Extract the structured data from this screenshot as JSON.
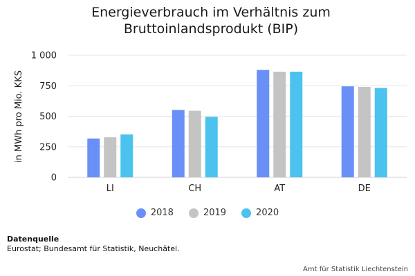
{
  "chart_data": {
    "type": "bar",
    "title_lines": [
      "Energieverbrauch im Verhältnis zum",
      "Bruttoinlandsprodukt (BIP)"
    ],
    "ylabel": "in MWh pro Mio. KKS",
    "xlabel": "",
    "categories": [
      "LI",
      "CH",
      "AT",
      "DE"
    ],
    "series": [
      {
        "name": "2018",
        "color": "#6a8ff7",
        "values": [
          318,
          552,
          880,
          745
        ]
      },
      {
        "name": "2019",
        "color": "#c4c4c4",
        "values": [
          328,
          545,
          865,
          740
        ]
      },
      {
        "name": "2020",
        "color": "#4bc3ee",
        "values": [
          352,
          495,
          865,
          732
        ]
      }
    ],
    "ylim": [
      0,
      1000
    ],
    "yticks": [
      0,
      250,
      500,
      750,
      1000
    ],
    "ytick_labels": [
      "0",
      "250",
      "500",
      "750",
      "1 000"
    ],
    "grid": true,
    "legend_position": "bottom"
  },
  "source": {
    "heading": "Datenquelle",
    "text": "Eurostat; Bundesamt für Statistik, Neuchâtel."
  },
  "credit": "Amt für Statistik Liechtenstein"
}
